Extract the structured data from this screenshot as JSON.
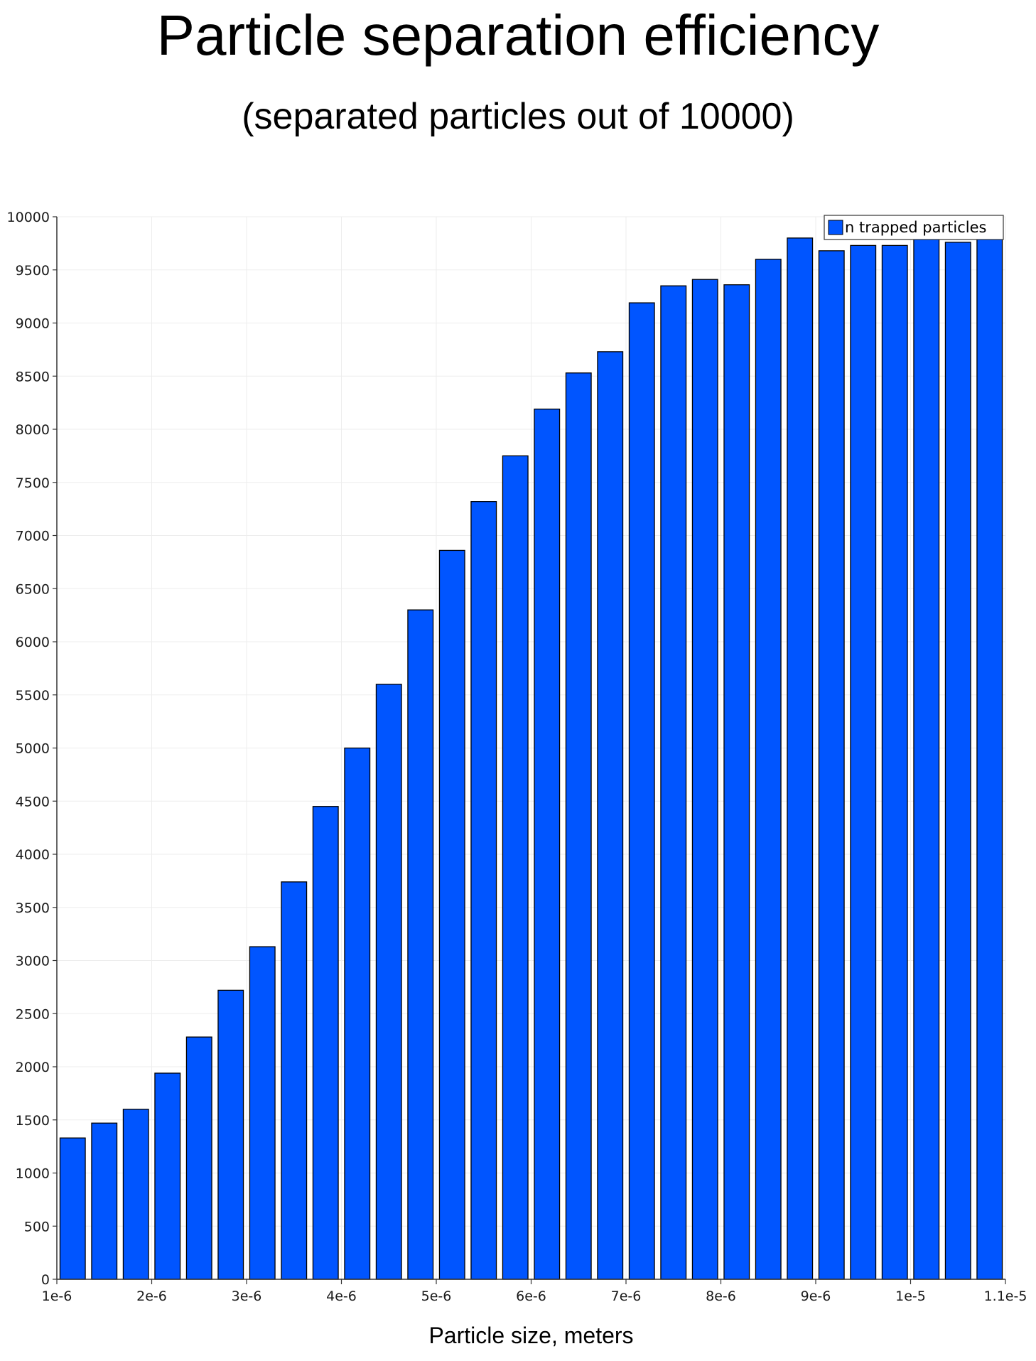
{
  "chart_data": {
    "type": "bar",
    "title": "Particle separation efficiency",
    "subtitle": "(separated particles out of 10000)",
    "xlabel": "Particle size, meters",
    "ylabel": "",
    "ylim": [
      0,
      10000
    ],
    "xlim": [
      1e-06,
      1.1e-05
    ],
    "yticks": [
      0,
      500,
      1000,
      1500,
      2000,
      2500,
      3000,
      3500,
      4000,
      4500,
      5000,
      5500,
      6000,
      6500,
      7000,
      7500,
      8000,
      8500,
      9000,
      9500,
      10000
    ],
    "xticks": [
      {
        "value": 1e-06,
        "label": "1e-6"
      },
      {
        "value": 2e-06,
        "label": "2e-6"
      },
      {
        "value": 3e-06,
        "label": "3e-6"
      },
      {
        "value": 4e-06,
        "label": "4e-6"
      },
      {
        "value": 5e-06,
        "label": "5e-6"
      },
      {
        "value": 6e-06,
        "label": "6e-6"
      },
      {
        "value": 7e-06,
        "label": "7e-6"
      },
      {
        "value": 8e-06,
        "label": "8e-6"
      },
      {
        "value": 9e-06,
        "label": "9e-6"
      },
      {
        "value": 1e-05,
        "label": "1e-5"
      },
      {
        "value": 1.1e-05,
        "label": "1.1e-5"
      }
    ],
    "grid": true,
    "legend_position": "top-right",
    "series": [
      {
        "name": "n trapped particles",
        "color": "#0055ff",
        "x": [
          1.1667e-06,
          1.5e-06,
          1.8333e-06,
          2.1667e-06,
          2.5e-06,
          2.8333e-06,
          3.1667e-06,
          3.5e-06,
          3.8333e-06,
          4.1667e-06,
          4.5e-06,
          4.8333e-06,
          5.1667e-06,
          5.5e-06,
          5.8333e-06,
          6.1667e-06,
          6.5e-06,
          6.8333e-06,
          7.1667e-06,
          7.5e-06,
          7.8333e-06,
          8.1667e-06,
          8.5e-06,
          8.8333e-06,
          9.1667e-06,
          9.5e-06,
          9.8333e-06,
          1.01667e-05,
          1.05e-05,
          1.08333e-05
        ],
        "values": [
          1330,
          1470,
          1600,
          1940,
          2280,
          2720,
          3130,
          3740,
          4450,
          5000,
          5600,
          6300,
          6860,
          7320,
          7750,
          8190,
          8530,
          8730,
          9190,
          9350,
          9410,
          9360,
          9600,
          9800,
          9680,
          9730,
          9730,
          9800,
          9760,
          9800
        ]
      }
    ]
  }
}
